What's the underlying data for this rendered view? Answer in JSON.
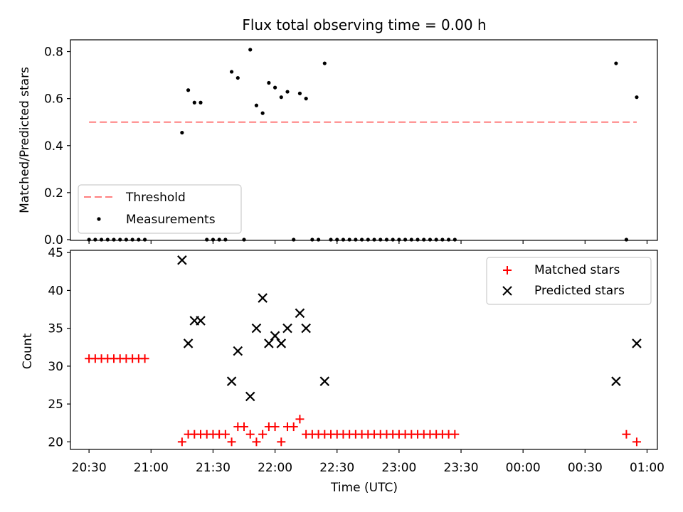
{
  "title": "Flux total observing time = 0.00 h",
  "colors": {
    "threshold": "#ff7f7f",
    "measurement": "#000000",
    "matched": "#ff0000",
    "predicted": "#000000"
  },
  "chart_data": [
    {
      "type": "scatter",
      "panel": "top",
      "title": "Flux total observing time = 0.00 h",
      "xlabel": "",
      "ylabel": "Matched/Predicted stars",
      "xlim": [
        "20:21",
        "01:05"
      ],
      "ylim": [
        0,
        0.85
      ],
      "yticks": [
        "0.0",
        "0.2",
        "0.4",
        "0.6",
        "0.8"
      ],
      "legend_position": "lower-left",
      "threshold": {
        "name": "Threshold",
        "value": 0.5,
        "x_range": [
          "20:30",
          "00:55"
        ]
      },
      "series": [
        {
          "name": "Measurements",
          "points": [
            [
              "20:30",
              0
            ],
            [
              "20:33",
              0
            ],
            [
              "20:36",
              0
            ],
            [
              "20:39",
              0
            ],
            [
              "20:42",
              0
            ],
            [
              "20:45",
              0
            ],
            [
              "20:48",
              0
            ],
            [
              "20:51",
              0
            ],
            [
              "20:54",
              0
            ],
            [
              "20:57",
              0
            ],
            [
              "21:15",
              0.455
            ],
            [
              "21:18",
              0.636
            ],
            [
              "21:21",
              0.583
            ],
            [
              "21:24",
              0.583
            ],
            [
              "21:27",
              0
            ],
            [
              "21:30",
              0
            ],
            [
              "21:33",
              0
            ],
            [
              "21:36",
              0
            ],
            [
              "21:39",
              0.714
            ],
            [
              "21:42",
              0.688
            ],
            [
              "21:45",
              0
            ],
            [
              "21:48",
              0.808
            ],
            [
              "21:51",
              0.571
            ],
            [
              "21:54",
              0.538
            ],
            [
              "21:57",
              0.667
            ],
            [
              "22:00",
              0.647
            ],
            [
              "22:03",
              0.606
            ],
            [
              "22:06",
              0.629
            ],
            [
              "22:09",
              0
            ],
            [
              "22:12",
              0.622
            ],
            [
              "22:15",
              0.6
            ],
            [
              "22:18",
              0
            ],
            [
              "22:21",
              0
            ],
            [
              "22:24",
              0.75
            ],
            [
              "22:27",
              0
            ],
            [
              "22:30",
              0
            ],
            [
              "22:33",
              0
            ],
            [
              "22:36",
              0
            ],
            [
              "22:39",
              0
            ],
            [
              "22:42",
              0
            ],
            [
              "22:45",
              0
            ],
            [
              "22:48",
              0
            ],
            [
              "22:51",
              0
            ],
            [
              "22:54",
              0
            ],
            [
              "22:57",
              0
            ],
            [
              "23:00",
              0
            ],
            [
              "23:03",
              0
            ],
            [
              "23:06",
              0
            ],
            [
              "23:09",
              0
            ],
            [
              "23:12",
              0
            ],
            [
              "23:15",
              0
            ],
            [
              "23:18",
              0
            ],
            [
              "23:21",
              0
            ],
            [
              "23:24",
              0
            ],
            [
              "23:27",
              0
            ],
            [
              "00:45",
              0.75
            ],
            [
              "00:50",
              0
            ],
            [
              "00:55",
              0.606
            ]
          ]
        }
      ]
    },
    {
      "type": "scatter",
      "panel": "bottom",
      "xlabel": "Time (UTC)",
      "ylabel": "Count",
      "xlim": [
        "20:21",
        "01:05"
      ],
      "ylim": [
        19,
        45.3
      ],
      "yticks": [
        "20",
        "25",
        "30",
        "35",
        "40",
        "45"
      ],
      "xticks": [
        "20:30",
        "21:00",
        "21:30",
        "22:00",
        "22:30",
        "23:00",
        "23:30",
        "00:00",
        "00:30",
        "01:00"
      ],
      "legend_position": "upper-right",
      "series": [
        {
          "name": "Matched stars",
          "marker": "plus",
          "points": [
            [
              "20:30",
              31
            ],
            [
              "20:33",
              31
            ],
            [
              "20:36",
              31
            ],
            [
              "20:39",
              31
            ],
            [
              "20:42",
              31
            ],
            [
              "20:45",
              31
            ],
            [
              "20:48",
              31
            ],
            [
              "20:51",
              31
            ],
            [
              "20:54",
              31
            ],
            [
              "20:57",
              31
            ],
            [
              "21:15",
              20
            ],
            [
              "21:18",
              21
            ],
            [
              "21:21",
              21
            ],
            [
              "21:24",
              21
            ],
            [
              "21:27",
              21
            ],
            [
              "21:30",
              21
            ],
            [
              "21:33",
              21
            ],
            [
              "21:36",
              21
            ],
            [
              "21:39",
              20
            ],
            [
              "21:42",
              22
            ],
            [
              "21:45",
              22
            ],
            [
              "21:48",
              21
            ],
            [
              "21:51",
              20
            ],
            [
              "21:54",
              21
            ],
            [
              "21:57",
              22
            ],
            [
              "22:00",
              22
            ],
            [
              "22:03",
              20
            ],
            [
              "22:06",
              22
            ],
            [
              "22:09",
              22
            ],
            [
              "22:12",
              23
            ],
            [
              "22:15",
              21
            ],
            [
              "22:18",
              21
            ],
            [
              "22:21",
              21
            ],
            [
              "22:24",
              21
            ],
            [
              "22:27",
              21
            ],
            [
              "22:30",
              21
            ],
            [
              "22:33",
              21
            ],
            [
              "22:36",
              21
            ],
            [
              "22:39",
              21
            ],
            [
              "22:42",
              21
            ],
            [
              "22:45",
              21
            ],
            [
              "22:48",
              21
            ],
            [
              "22:51",
              21
            ],
            [
              "22:54",
              21
            ],
            [
              "22:57",
              21
            ],
            [
              "23:00",
              21
            ],
            [
              "23:03",
              21
            ],
            [
              "23:06",
              21
            ],
            [
              "23:09",
              21
            ],
            [
              "23:12",
              21
            ],
            [
              "23:15",
              21
            ],
            [
              "23:18",
              21
            ],
            [
              "23:21",
              21
            ],
            [
              "23:24",
              21
            ],
            [
              "23:27",
              21
            ],
            [
              "00:50",
              21
            ],
            [
              "00:55",
              20
            ]
          ]
        },
        {
          "name": "Predicted stars",
          "marker": "x",
          "points": [
            [
              "21:15",
              44
            ],
            [
              "21:18",
              33
            ],
            [
              "21:21",
              36
            ],
            [
              "21:24",
              36
            ],
            [
              "21:39",
              28
            ],
            [
              "21:42",
              32
            ],
            [
              "21:48",
              26
            ],
            [
              "21:51",
              35
            ],
            [
              "21:54",
              39
            ],
            [
              "21:57",
              33
            ],
            [
              "22:00",
              34
            ],
            [
              "22:03",
              33
            ],
            [
              "22:06",
              35
            ],
            [
              "22:12",
              37
            ],
            [
              "22:15",
              35
            ],
            [
              "22:24",
              28
            ],
            [
              "00:45",
              28
            ],
            [
              "00:55",
              33
            ]
          ]
        }
      ]
    }
  ]
}
